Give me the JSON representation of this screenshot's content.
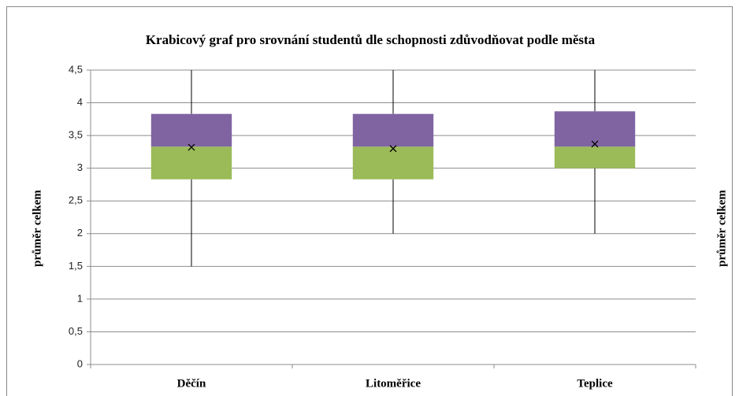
{
  "chart_data": {
    "type": "box",
    "title": "Krabicový graf pro srovnání studentů dle schopnosti zdůvodňovat podle města",
    "ylabel": "průměr celkem",
    "y2label": "průměr celkem",
    "categories": [
      "Děčín",
      "Litoměřice",
      "Teplice"
    ],
    "min": [
      1.5,
      2,
      2
    ],
    "q1": [
      2.83,
      2.83,
      3
    ],
    "median": [
      3.33,
      3.33,
      3.33
    ],
    "q3": [
      3.83,
      3.83,
      3.87
    ],
    "max": [
      4.5,
      4.5,
      4.5
    ],
    "mean": [
      3.32,
      3.3,
      3.37
    ],
    "lower_color": "#9bbb59",
    "upper_color": "#8064a2",
    "ylim": [
      0,
      4.5
    ],
    "yticks": [
      0,
      {
        "value": 0.5,
        "label": "0,5"
      },
      1,
      {
        "value": 1.5,
        "label": "1,5"
      },
      2,
      {
        "value": 2.5,
        "label": "2,5"
      },
      3,
      {
        "value": 3.5,
        "label": "3,5"
      },
      4,
      {
        "value": 4.5,
        "label": "4,5"
      }
    ],
    "grid": true
  }
}
